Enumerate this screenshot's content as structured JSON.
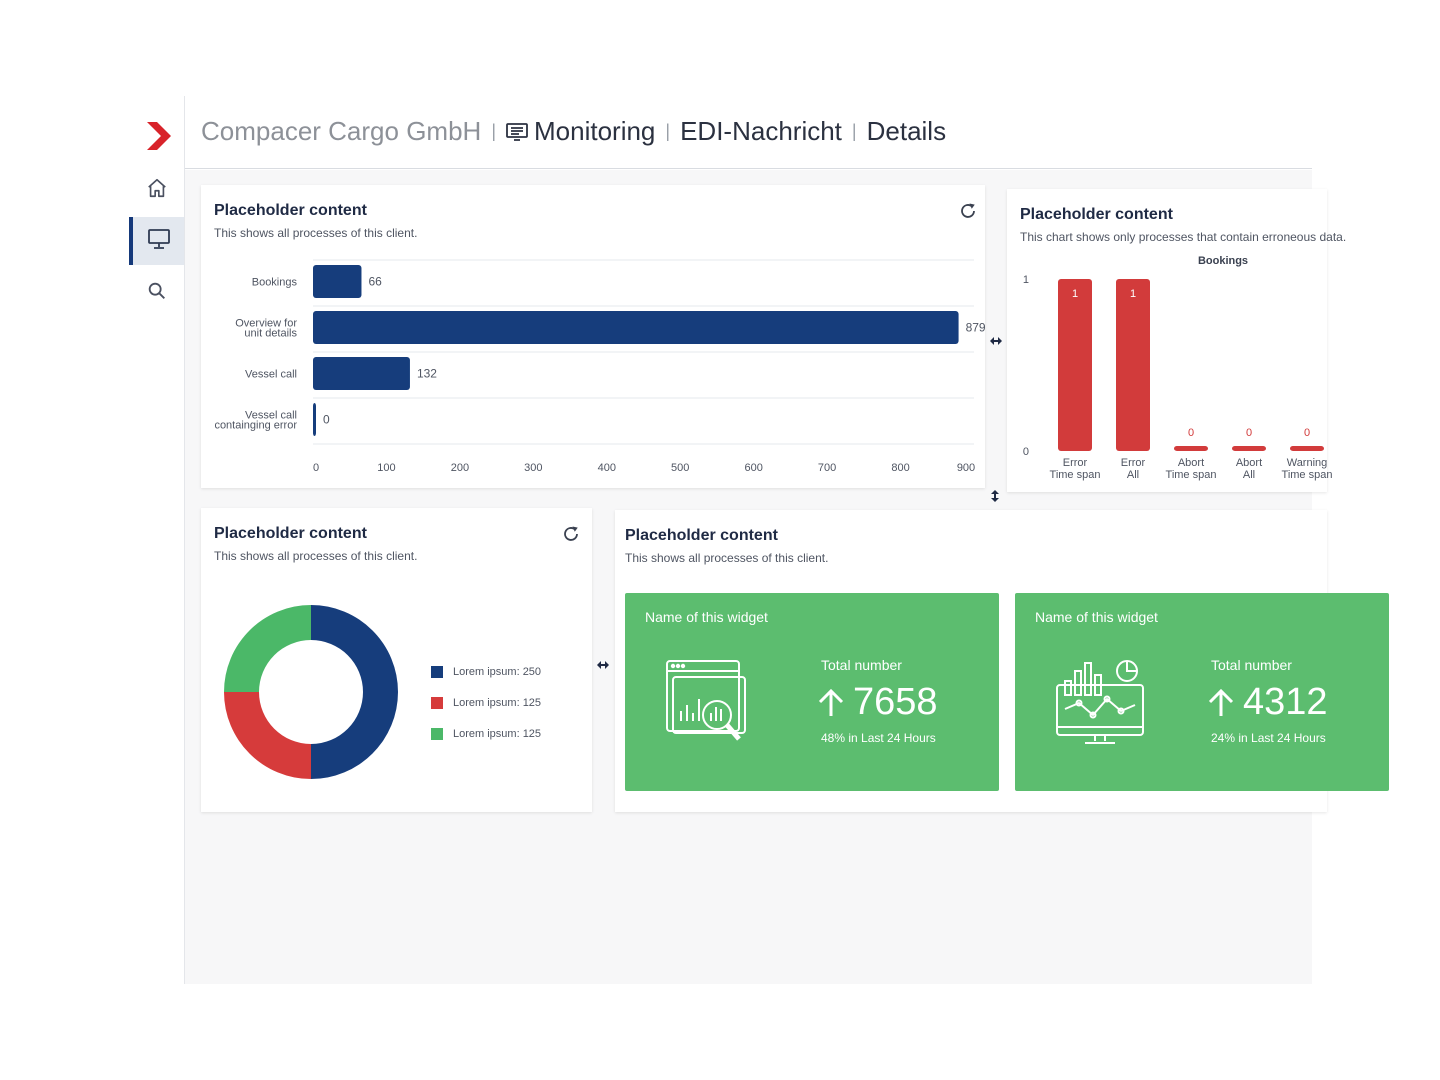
{
  "breadcrumb": {
    "company": "Compacer Cargo GmbH",
    "items": [
      "Monitoring",
      "EDI-Nachricht",
      "Details"
    ]
  },
  "sidebar": {
    "logo_icon": "chevron-logo-icon",
    "items": [
      {
        "name": "home",
        "icon": "home-icon",
        "active": false
      },
      {
        "name": "monitoring",
        "icon": "monitor-icon",
        "active": true
      },
      {
        "name": "search",
        "icon": "search-icon",
        "active": false
      }
    ]
  },
  "colors": {
    "brand_red": "#d8232a",
    "navy": "#163d7c",
    "chart_red": "#d23b3b",
    "green": "#5cbd6f",
    "legend_red": "#d63b3b",
    "legend_green": "#4bb868"
  },
  "cards": {
    "bar": {
      "title": "Placeholder content",
      "subtitle": "This shows all processes of this client."
    },
    "error": {
      "title": "Placeholder content",
      "subtitle": "This chart shows only processes that contain erroneous data."
    },
    "donut": {
      "title": "Placeholder content",
      "subtitle": "This shows all processes of this client.",
      "legend": [
        "Lorem ipsum: 250",
        "Lorem ipsum: 125",
        "Lorem ipsum: 125"
      ]
    },
    "widgets": {
      "title": "Placeholder content",
      "subtitle": "This shows all processes of this client.",
      "items": [
        {
          "name": "Name of this widget",
          "total_label": "Total number",
          "value": "7658",
          "trend": "48% in Last 24 Hours",
          "icon": "analytics-search-icon"
        },
        {
          "name": "Name of this widget",
          "total_label": "Total number",
          "value": "4312",
          "trend": "24% in Last 24 Hours",
          "icon": "monitor-chart-icon"
        }
      ]
    }
  },
  "chart_data": [
    {
      "type": "bar",
      "orientation": "horizontal",
      "categories": [
        [
          "Bookings"
        ],
        [
          "Overview for",
          "unit details"
        ],
        [
          "Vessel call"
        ],
        [
          "Vessel call",
          "containging error"
        ]
      ],
      "values": [
        66,
        879,
        132,
        0
      ],
      "xlim": [
        0,
        900
      ],
      "xticks": [
        0,
        100,
        200,
        300,
        400,
        500,
        600,
        700,
        800,
        900
      ],
      "grid": true,
      "color": "#163d7c"
    },
    {
      "type": "bar",
      "title": "Bookings",
      "categories": [
        [
          "Error",
          "Time span"
        ],
        [
          "Error",
          "All"
        ],
        [
          "Abort",
          "Time span"
        ],
        [
          "Abort",
          "All"
        ],
        [
          "Warning",
          "Time span"
        ]
      ],
      "values": [
        1,
        1,
        0,
        0,
        0
      ],
      "ylim": [
        0,
        1
      ],
      "yticks": [
        0,
        1
      ],
      "color": "#d23b3b"
    },
    {
      "type": "pie",
      "donut": true,
      "labels": [
        "Lorem ipsum",
        "Lorem ipsum",
        "Lorem ipsum"
      ],
      "values": [
        250,
        125,
        125
      ],
      "colors": [
        "#163d7c",
        "#d63b3b",
        "#4bb868"
      ],
      "legend": "right"
    }
  ]
}
